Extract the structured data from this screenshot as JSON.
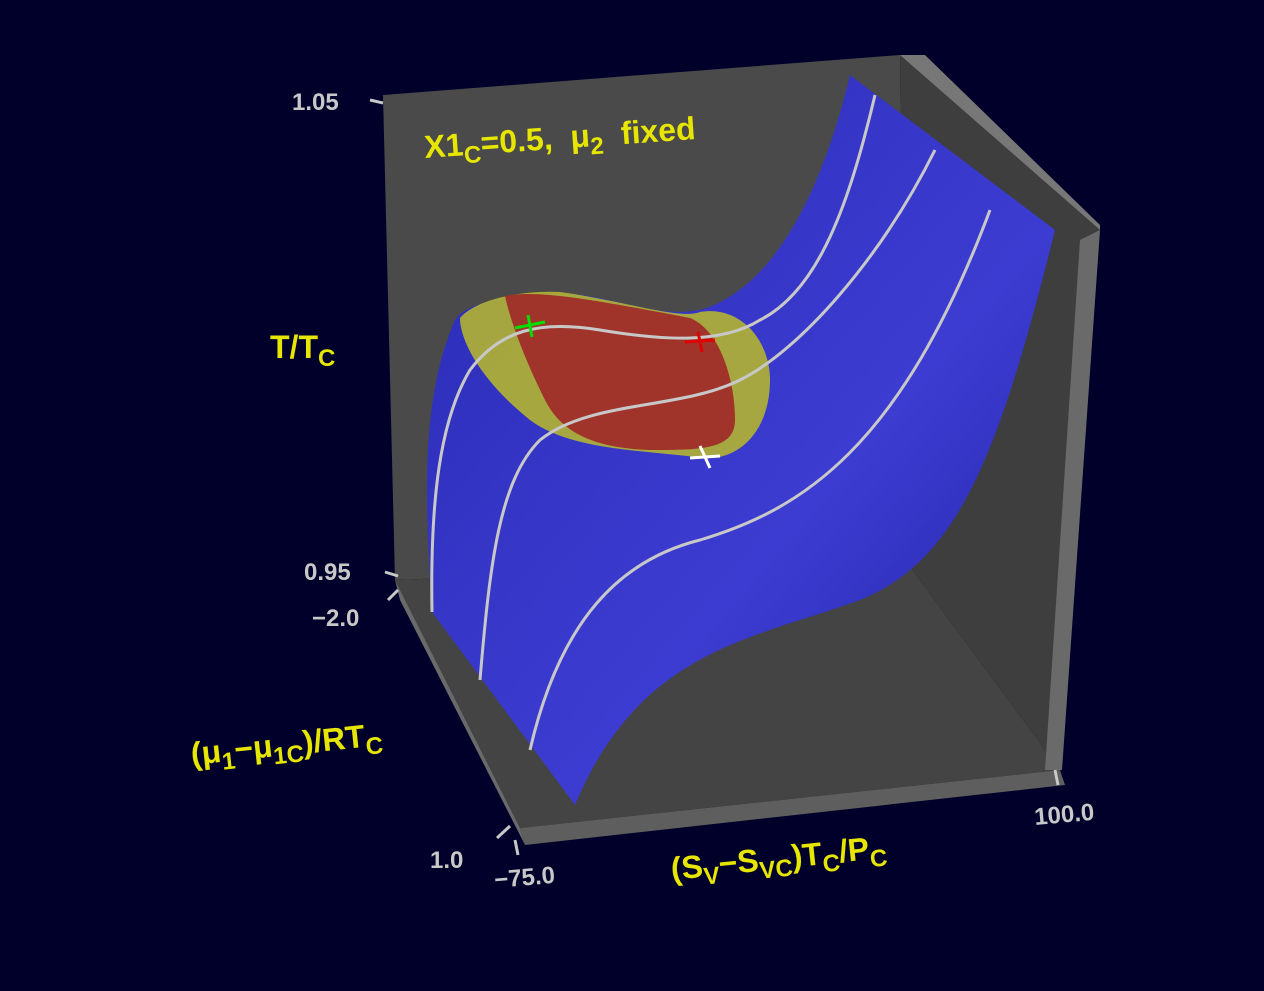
{
  "annotation": [
    {
      "t": "X1",
      "sub": false
    },
    {
      "t": "C",
      "sub": true
    },
    {
      "t": "=0.5,  μ",
      "sub": false
    },
    {
      "t": "2",
      "sub": true
    },
    {
      "t": "  fixed",
      "sub": false
    }
  ],
  "axes": {
    "z": {
      "label": [
        {
          "t": "T/T",
          "sub": false
        },
        {
          "t": "C",
          "sub": true
        }
      ],
      "ticks": [
        "1.05",
        "0.95"
      ]
    },
    "y": {
      "label": [
        {
          "t": "(μ",
          "sub": false
        },
        {
          "t": "1",
          "sub": true
        },
        {
          "t": "−μ",
          "sub": false
        },
        {
          "t": "1C",
          "sub": true
        },
        {
          "t": ")/RT",
          "sub": false
        },
        {
          "t": "C",
          "sub": true
        }
      ],
      "ticks": [
        "−2.0",
        "1.0"
      ]
    },
    "x": {
      "label": [
        {
          "t": "(S",
          "sub": false
        },
        {
          "t": "V",
          "sub": true
        },
        {
          "t": "−S",
          "sub": false
        },
        {
          "t": "VC",
          "sub": true
        },
        {
          "t": ")T",
          "sub": false
        },
        {
          "t": "C",
          "sub": true
        },
        {
          "t": "/P",
          "sub": false
        },
        {
          "t": "C",
          "sub": true
        }
      ],
      "ticks": [
        "−75.0",
        "100.0"
      ]
    }
  }
}
